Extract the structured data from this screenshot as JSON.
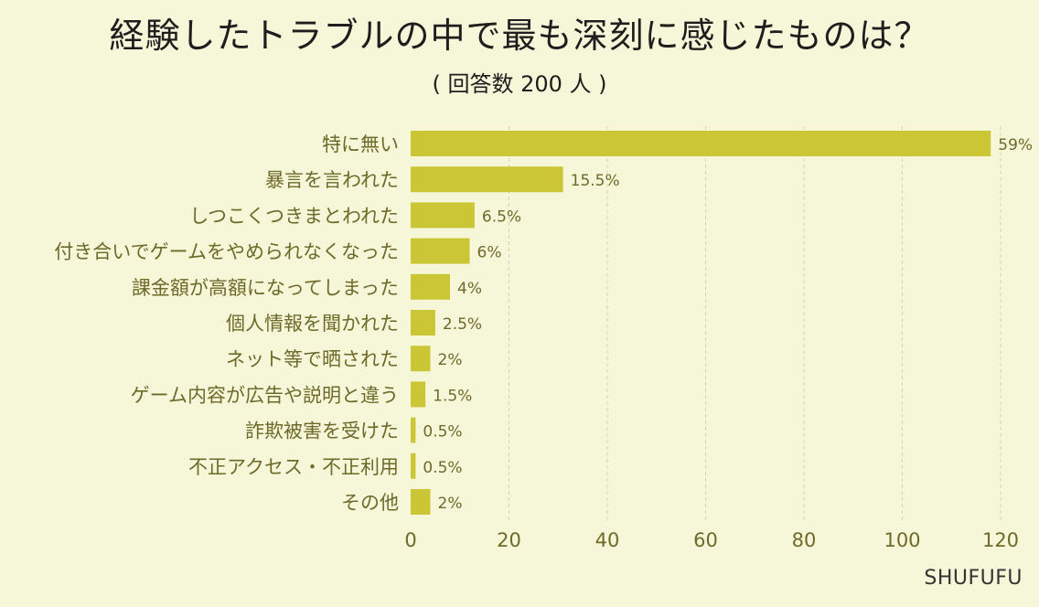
{
  "title": "経験したトラブルの中で最も深刻に感じたものは？",
  "subtitle": "( 回答数 200 人 )",
  "brand": "SHUFUFU",
  "colors": {
    "bar": "#cbc636",
    "background": "#f6f6d8",
    "label": "#6e6a2a"
  },
  "chart_data": {
    "type": "bar",
    "orientation": "horizontal",
    "title": "経験したトラブルの中で最も深刻に感じたものは？",
    "categories": [
      "特に無い",
      "暴言を言われた",
      "しつこくつきまとわれた",
      "付き合いでゲームをやめられなくなった",
      "課金額が高額になってしまった",
      "個人情報を聞かれた",
      "ネット等で晒された",
      "ゲーム内容が広告や説明と違う",
      "詐欺被害を受けた",
      "不正アクセス・不正利用",
      "その他"
    ],
    "values": [
      118,
      31,
      13,
      12,
      8,
      5,
      4,
      3,
      1,
      1,
      4
    ],
    "value_labels": [
      "59%",
      "15.5%",
      "6.5%",
      "6%",
      "4%",
      "2.5%",
      "2%",
      "1.5%",
      "0.5%",
      "0.5%",
      "2%"
    ],
    "xlim": [
      0,
      120
    ],
    "xticks": [
      0,
      20,
      40,
      60,
      80,
      100,
      120
    ],
    "xlabel": "",
    "ylabel": "",
    "grid": true
  }
}
